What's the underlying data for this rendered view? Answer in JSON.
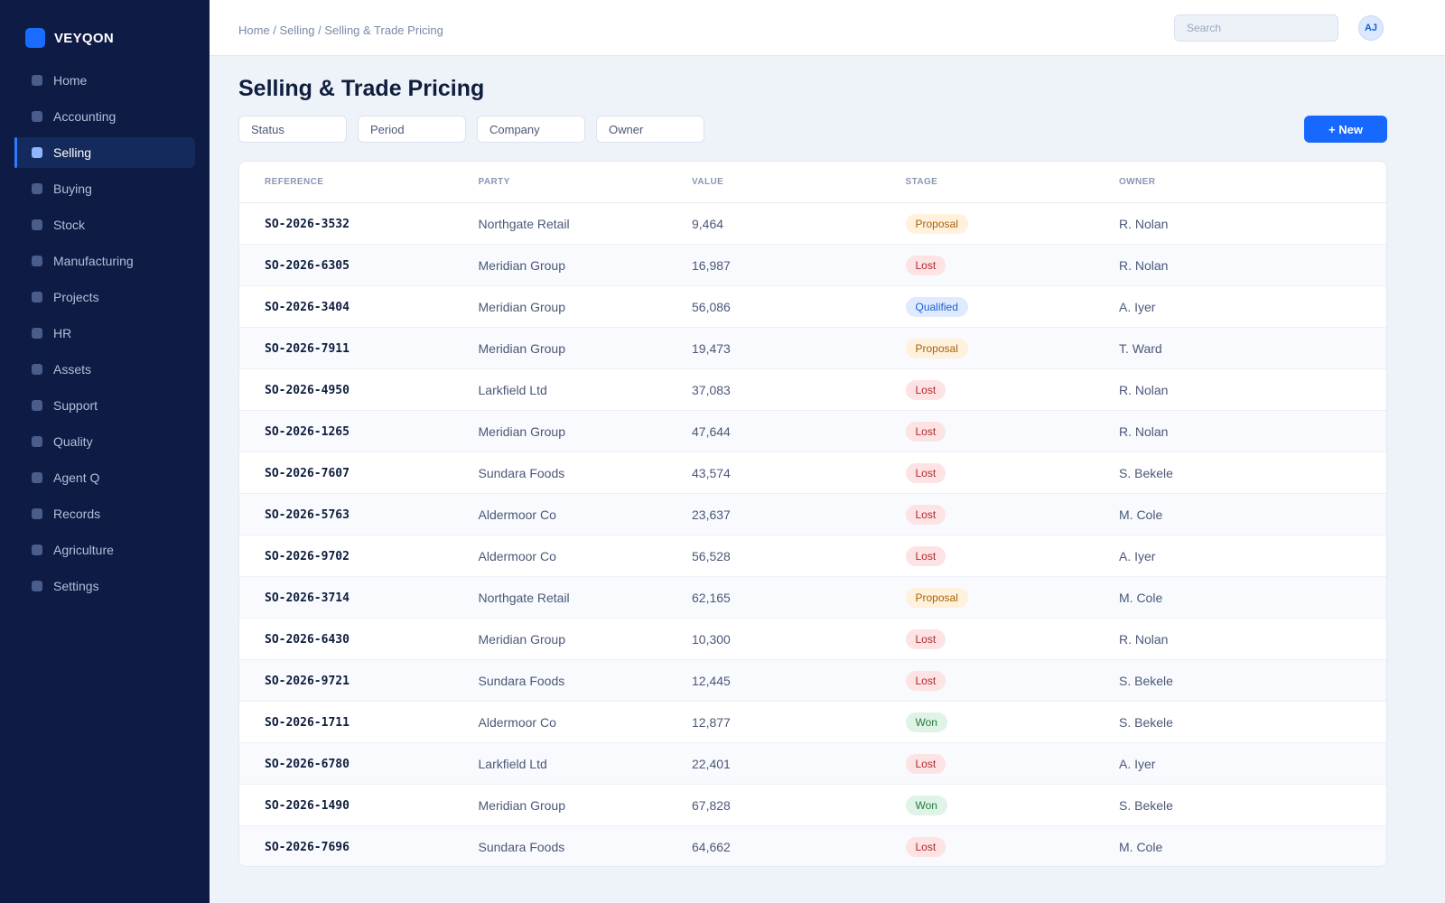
{
  "app": {
    "name": "VEYQON"
  },
  "sidebar": {
    "items": [
      {
        "label": "Home",
        "active": false
      },
      {
        "label": "Accounting",
        "active": false
      },
      {
        "label": "Selling",
        "active": true
      },
      {
        "label": "Buying",
        "active": false
      },
      {
        "label": "Stock",
        "active": false
      },
      {
        "label": "Manufacturing",
        "active": false
      },
      {
        "label": "Projects",
        "active": false
      },
      {
        "label": "HR",
        "active": false
      },
      {
        "label": "Assets",
        "active": false
      },
      {
        "label": "Support",
        "active": false
      },
      {
        "label": "Quality",
        "active": false
      },
      {
        "label": "Agent Q",
        "active": false
      },
      {
        "label": "Records",
        "active": false
      },
      {
        "label": "Agriculture",
        "active": false
      },
      {
        "label": "Settings",
        "active": false
      }
    ]
  },
  "header": {
    "breadcrumb": "Home / Selling / Selling & Trade Pricing",
    "search_placeholder": "Search",
    "avatar_initials": "AJ"
  },
  "main": {
    "title": "Selling & Trade Pricing",
    "filters": [
      "Status",
      "Period",
      "Company",
      "Owner"
    ],
    "new_button_label": "+ New"
  },
  "table": {
    "columns": [
      "REFERENCE",
      "PARTY",
      "VALUE",
      "STAGE",
      "OWNER"
    ],
    "rows": [
      {
        "reference": "SO-2026-3532",
        "party": "Northgate Retail",
        "value": "9,464",
        "stage": "Proposal",
        "owner": "R. Nolan"
      },
      {
        "reference": "SO-2026-6305",
        "party": "Meridian Group",
        "value": "16,987",
        "stage": "Lost",
        "owner": "R. Nolan"
      },
      {
        "reference": "SO-2026-3404",
        "party": "Meridian Group",
        "value": "56,086",
        "stage": "Qualified",
        "owner": "A. Iyer"
      },
      {
        "reference": "SO-2026-7911",
        "party": "Meridian Group",
        "value": "19,473",
        "stage": "Proposal",
        "owner": "T. Ward"
      },
      {
        "reference": "SO-2026-4950",
        "party": "Larkfield Ltd",
        "value": "37,083",
        "stage": "Lost",
        "owner": "R. Nolan"
      },
      {
        "reference": "SO-2026-1265",
        "party": "Meridian Group",
        "value": "47,644",
        "stage": "Lost",
        "owner": "R. Nolan"
      },
      {
        "reference": "SO-2026-7607",
        "party": "Sundara Foods",
        "value": "43,574",
        "stage": "Lost",
        "owner": "S. Bekele"
      },
      {
        "reference": "SO-2026-5763",
        "party": "Aldermoor Co",
        "value": "23,637",
        "stage": "Lost",
        "owner": "M. Cole"
      },
      {
        "reference": "SO-2026-9702",
        "party": "Aldermoor Co",
        "value": "56,528",
        "stage": "Lost",
        "owner": "A. Iyer"
      },
      {
        "reference": "SO-2026-3714",
        "party": "Northgate Retail",
        "value": "62,165",
        "stage": "Proposal",
        "owner": "M. Cole"
      },
      {
        "reference": "SO-2026-6430",
        "party": "Meridian Group",
        "value": "10,300",
        "stage": "Lost",
        "owner": "R. Nolan"
      },
      {
        "reference": "SO-2026-9721",
        "party": "Sundara Foods",
        "value": "12,445",
        "stage": "Lost",
        "owner": "S. Bekele"
      },
      {
        "reference": "SO-2026-1711",
        "party": "Aldermoor Co",
        "value": "12,877",
        "stage": "Won",
        "owner": "S. Bekele"
      },
      {
        "reference": "SO-2026-6780",
        "party": "Larkfield Ltd",
        "value": "22,401",
        "stage": "Lost",
        "owner": "A. Iyer"
      },
      {
        "reference": "SO-2026-1490",
        "party": "Meridian Group",
        "value": "67,828",
        "stage": "Won",
        "owner": "S. Bekele"
      },
      {
        "reference": "SO-2026-7696",
        "party": "Sundara Foods",
        "value": "64,662",
        "stage": "Lost",
        "owner": "M. Cole"
      }
    ]
  },
  "colors": {
    "sidebar_bg": "#0d1b45",
    "accent": "#1668ff",
    "page_bg": "#eef2f9",
    "stage_proposal": "#a8620a",
    "stage_lost": "#b3282d",
    "stage_qualified": "#1a5fd6",
    "stage_won": "#237a3f"
  }
}
